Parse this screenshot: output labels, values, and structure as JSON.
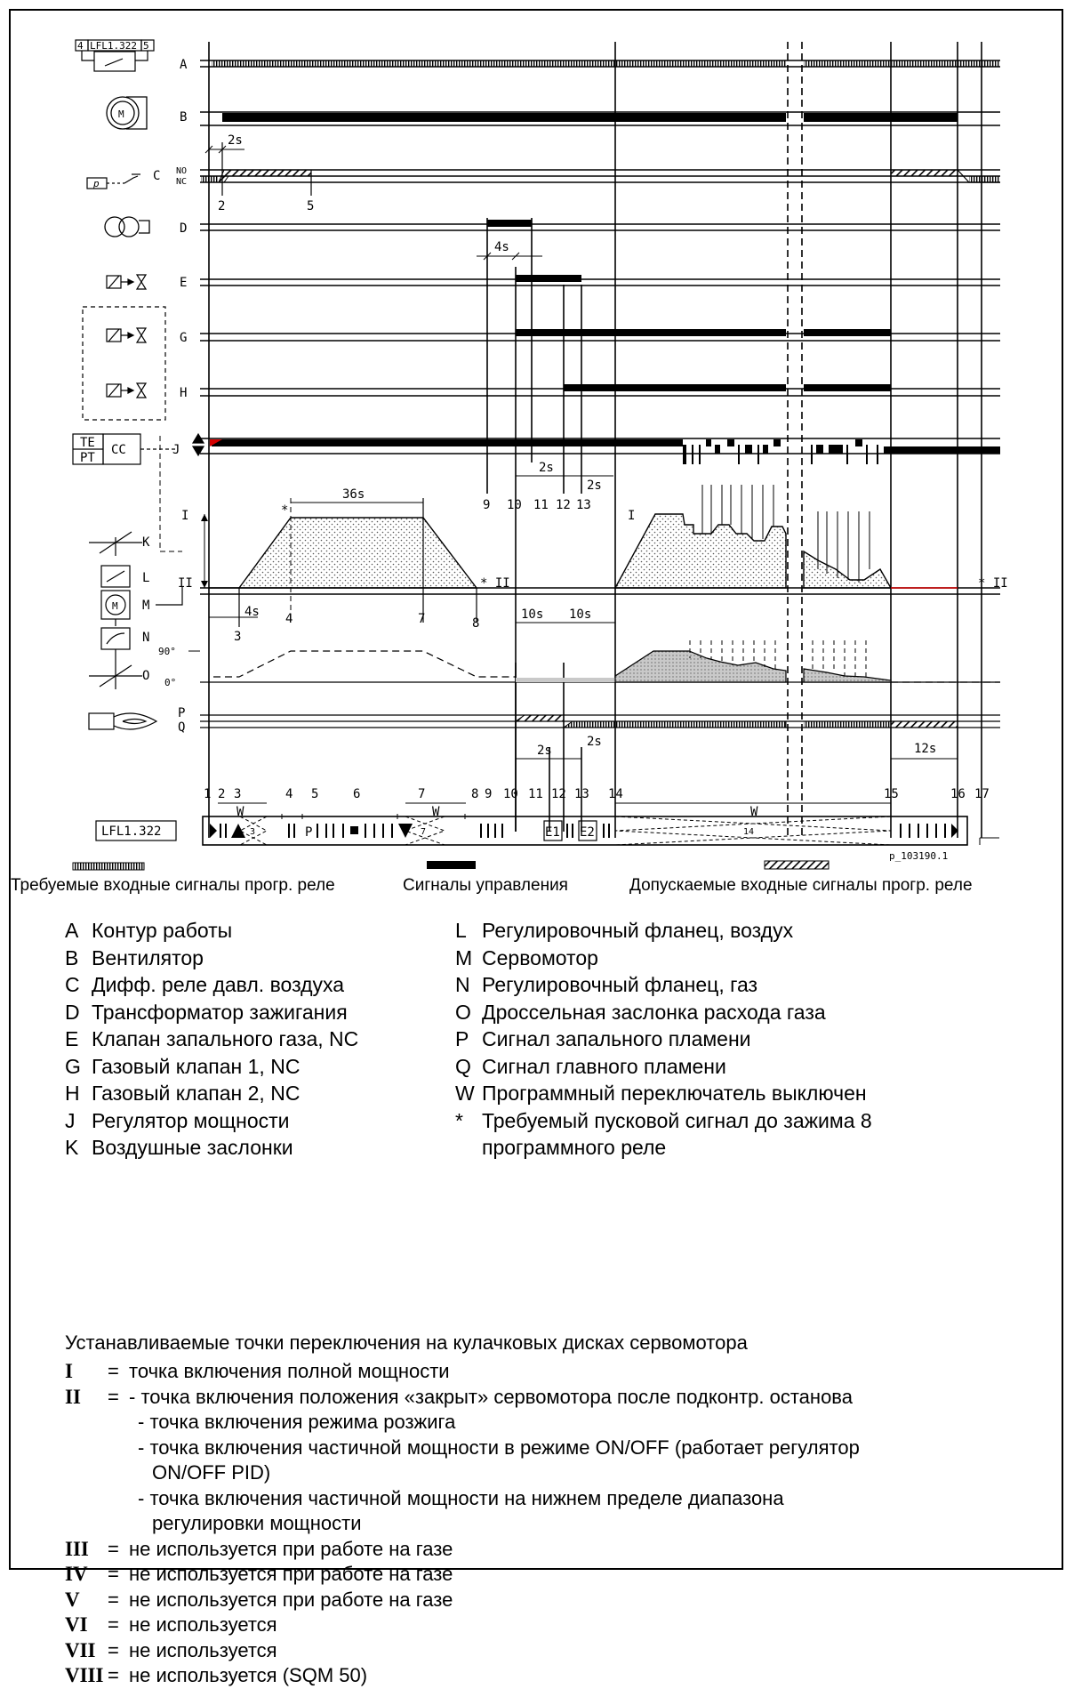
{
  "diagram": {
    "ref_id": "p_103190.1",
    "device_box": "LFL1.322",
    "relay_symbol": {
      "left": "4",
      "center": "LFL1.322",
      "right": "5"
    },
    "sensor_box": {
      "top": "TE",
      "bottom": "PT",
      "right": "CC"
    },
    "motor_letter": "M",
    "pressure_letter": "p",
    "row_labels": [
      "A",
      "B",
      "C",
      "D",
      "E",
      "G",
      "H",
      "J",
      "K",
      "L",
      "M",
      "N",
      "O",
      "P",
      "Q"
    ],
    "c_states": {
      "no": "NO",
      "nc": "NC"
    },
    "servo_levels": {
      "high": "I",
      "low": "II",
      "marker_low": "* II",
      "marker_right": "* II",
      "marker_high": "*",
      "second_high": "I"
    },
    "angle_labels": {
      "open": "90°",
      "closed": "0°"
    },
    "timings": {
      "t2s_top": "2s",
      "t4s": "4s",
      "t2s_a": "2s",
      "t2s_b": "2s",
      "t36s": "36s",
      "t4s_bottom": "4s",
      "t10s_a": "10s",
      "t10s_b": "10s",
      "t2s_c": "2s",
      "t2s_d": "2s",
      "t12s": "12s"
    },
    "c_markers": [
      "2",
      "5"
    ],
    "j_markers": [
      "9",
      "10",
      "11",
      "12",
      "13"
    ],
    "k_markers": [
      "3",
      "4",
      "7",
      "8"
    ],
    "bottom_numbers": [
      "1",
      "2",
      "3",
      "4",
      "5",
      "6",
      "7",
      "8",
      "9",
      "10",
      "11",
      "12",
      "13",
      "14",
      "15",
      "16",
      "17"
    ],
    "w_label": "W",
    "program_segments": [
      "3",
      "7",
      "14"
    ],
    "program_e1": "E1",
    "program_e2": "E2",
    "program_p": "P"
  },
  "captions": {
    "required": "Требуемые входные сигналы прогр. реле",
    "control": "Сигналы управления",
    "allowed": "Допускаемые входные сигналы прогр. реле"
  },
  "legend_left": [
    {
      "code": "A",
      "text": "Контур работы"
    },
    {
      "code": "B",
      "text": "Вентилятор"
    },
    {
      "code": "C",
      "text": "Дифф. реле давл. воздуха"
    },
    {
      "code": "D",
      "text": "Трансформатор зажигания"
    },
    {
      "code": "E",
      "text": "Клапан запального газа, NC"
    },
    {
      "code": "G",
      "text": "Газовый клапан 1, NC"
    },
    {
      "code": "H",
      "text": "Газовый клапан 2, NC"
    },
    {
      "code": "J",
      "text": "Регулятор мощности"
    },
    {
      "code": "K",
      "text": "Воздушные заслонки"
    }
  ],
  "legend_right": [
    {
      "code": "L",
      "text": "Регулировочный фланец, воздух"
    },
    {
      "code": "M",
      "text": "Сервомотор"
    },
    {
      "code": "N",
      "text": "Регулировочный фланец, газ"
    },
    {
      "code": "O",
      "text": "Дроссельная заслонка расхода газа"
    },
    {
      "code": "P",
      "text": "Сигнал запального пламени"
    },
    {
      "code": "Q",
      "text": "Сигнал главного пламени"
    },
    {
      "code": "W",
      "text": "Программный переключатель выключен"
    },
    {
      "code": "*",
      "text": "Требуемый пусковой сигнал до зажима 8"
    },
    {
      "code": "",
      "text": "программного реле"
    }
  ],
  "switch_points": {
    "title": "Устанавливаемые точки переключения на кулачковых дисках сервомотора",
    "rows": [
      {
        "code": "I",
        "eq": "=",
        "lines": [
          "точка включения полной мощности"
        ]
      },
      {
        "code": "II",
        "eq": "=",
        "lines": [
          "- точка включения положения «закрыт» сервомотора после подконтр. останова",
          "- точка включения режима розжига",
          "- точка включения частичной мощности в режиме ON/OFF (работает регулятор",
          "ON/OFF PID)",
          "- точка включения частичной мощности на нижнем пределе диапазона",
          "регулировки мощности"
        ]
      },
      {
        "code": "III",
        "eq": "=",
        "lines": [
          "не используется при работе на газе"
        ]
      },
      {
        "code": "IV",
        "eq": "=",
        "lines": [
          "не используется при работе на газе"
        ]
      },
      {
        "code": "V",
        "eq": "=",
        "lines": [
          "не используется при работе на газе"
        ]
      },
      {
        "code": "VI",
        "eq": "=",
        "lines": [
          "не используется"
        ]
      },
      {
        "code": "VII",
        "eq": "=",
        "lines": [
          "не используется"
        ]
      },
      {
        "code": "VIII",
        "eq": "=",
        "lines": [
          "не используется (SQM 50)"
        ]
      }
    ]
  }
}
